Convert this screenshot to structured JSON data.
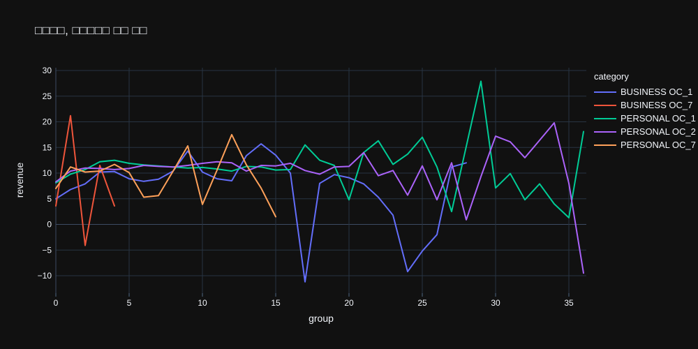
{
  "chart_data": {
    "type": "line",
    "title": "□□□□, □□□□□ □□ □□",
    "xlabel": "group",
    "ylabel": "revenue",
    "legend_title": "category",
    "x_ticks": [
      0,
      5,
      10,
      15,
      20,
      25,
      30,
      35
    ],
    "y_ticks": [
      -10,
      -5,
      0,
      5,
      10,
      15,
      20,
      25,
      30
    ],
    "xlim": [
      0,
      36.2
    ],
    "ylim": [
      -13.4,
      30.5
    ],
    "grid": true,
    "legend_position": "right",
    "background_color": "#111111",
    "grid_color": "#283442",
    "axis_line_color": "#3d4c63",
    "tick_color": "#506784",
    "text_color": "#f2f5fa",
    "series": [
      {
        "name": "BUSINESS OC_1",
        "color": "#636EFA",
        "x": [
          0,
          1,
          2,
          3,
          4,
          5,
          6,
          7,
          8,
          9,
          10,
          11,
          12,
          13,
          14,
          15,
          16,
          17,
          18,
          19,
          20,
          21,
          22,
          23,
          24,
          25,
          26,
          27,
          28
        ],
        "y": [
          5.0,
          6.8,
          7.9,
          10.2,
          10.3,
          8.9,
          8.4,
          8.8,
          10.4,
          14.3,
          10.2,
          8.9,
          8.5,
          13.4,
          15.7,
          13.5,
          10.0,
          -11.2,
          8.0,
          9.7,
          9.1,
          7.9,
          5.3,
          1.8,
          -9.2,
          -5.2,
          -2.0,
          11.2,
          12.0
        ]
      },
      {
        "name": "BUSINESS OC_7",
        "color": "#EF553B",
        "x": [
          0,
          1,
          2,
          3,
          4
        ],
        "y": [
          3.6,
          21.2,
          -4.1,
          11.5,
          3.6
        ]
      },
      {
        "name": "PERSONAL OC_1",
        "color": "#00CC96",
        "x": [
          0,
          1,
          2,
          3,
          4,
          5,
          6,
          7,
          8,
          9,
          10,
          11,
          12,
          13,
          14,
          15,
          16,
          17,
          18,
          19,
          20,
          21,
          22,
          23,
          24,
          25,
          26,
          27,
          28,
          29,
          30,
          31,
          32,
          33,
          34,
          35,
          36
        ],
        "y": [
          8.1,
          9.8,
          10.7,
          12.2,
          12.5,
          11.9,
          11.6,
          11.4,
          11.2,
          11.0,
          11.1,
          10.8,
          10.4,
          11.3,
          11.2,
          10.6,
          10.7,
          15.5,
          12.5,
          11.5,
          4.8,
          14.0,
          16.3,
          11.7,
          13.7,
          17.0,
          11.2,
          2.5,
          15.2,
          27.9,
          7.1,
          9.9,
          4.8,
          7.9,
          4.0,
          1.3,
          18.1
        ]
      },
      {
        "name": "PERSONAL OC_2",
        "color": "#AB63FA",
        "x": [
          0,
          1,
          2,
          3,
          4,
          5,
          6,
          7,
          8,
          9,
          10,
          11,
          12,
          13,
          14,
          15,
          16,
          17,
          18,
          19,
          20,
          21,
          22,
          23,
          24,
          25,
          26,
          27,
          28,
          29,
          30,
          31,
          32,
          33,
          34,
          35,
          36
        ],
        "y": [
          8.3,
          10.4,
          11.0,
          10.9,
          10.7,
          10.9,
          11.5,
          11.3,
          11.2,
          11.5,
          11.9,
          12.2,
          12.0,
          10.4,
          11.5,
          11.4,
          11.9,
          10.5,
          9.8,
          11.2,
          11.3,
          14.0,
          9.5,
          10.5,
          5.7,
          11.4,
          4.8,
          12.0,
          0.9,
          9.3,
          17.2,
          16.1,
          13.0,
          16.4,
          19.8,
          8.0,
          -9.5
        ]
      },
      {
        "name": "PERSONAL OC_7",
        "color": "#FFA15A",
        "x": [
          0,
          1,
          2,
          3,
          4,
          5,
          6,
          7,
          8,
          9,
          10,
          11,
          12,
          13,
          14,
          15
        ],
        "y": [
          7.0,
          11.2,
          10.2,
          10.4,
          11.7,
          10.1,
          5.3,
          5.6,
          10.4,
          15.3,
          3.9,
          10.6,
          17.5,
          11.6,
          7.1,
          1.5
        ]
      }
    ]
  }
}
